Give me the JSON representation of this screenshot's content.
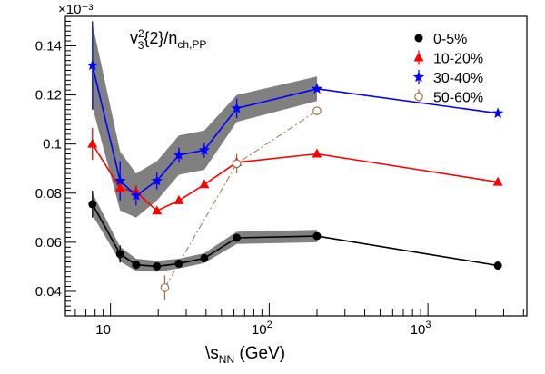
{
  "chart_data": {
    "type": "line",
    "title": "",
    "scale_label": "×10⁻³",
    "annotation": {
      "main": "v",
      "sup": "2",
      "sub": "3",
      "mid": "{2}/n",
      "sub2": "ch,PP"
    },
    "xlabel": {
      "prefix": "\\s",
      "sub": "NN",
      "suffix": " (GeV)"
    },
    "x_scale": "log",
    "xlim": [
      5.2,
      4200
    ],
    "ylim": [
      0.03,
      0.152
    ],
    "y_ticks": [
      "0.04",
      "0.06",
      "0.08",
      "0.1",
      "0.12",
      "0.14"
    ],
    "x_ticks": [
      {
        "base": "10",
        "exp": "",
        "value": 10
      },
      {
        "base": "10",
        "exp": "2",
        "value": 100
      },
      {
        "base": "10",
        "exp": "3",
        "value": 1000
      }
    ],
    "legend_position": "top-right",
    "series": [
      {
        "name": "0-5%",
        "color": "#000000",
        "marker": "circle",
        "line": "solid",
        "x": [
          7.7,
          11.5,
          14.5,
          19.6,
          27,
          39,
          62.4,
          200,
          2760
        ],
        "y": [
          0.0755,
          0.0552,
          0.0508,
          0.0502,
          0.0513,
          0.0535,
          0.0618,
          0.0625,
          0.0505
        ],
        "err": [
          0.0055,
          0.0035,
          0.0015,
          0.0012,
          0.001,
          0.001,
          0.0005,
          0.0005,
          0.0005
        ],
        "band": [
          0.0045,
          0.003,
          0.0025,
          0.0022,
          0.002,
          0.002,
          0.0025,
          0.0025,
          0
        ]
      },
      {
        "name": "10-20%",
        "color": "#ff0000",
        "marker": "triangle",
        "line": "solid",
        "x": [
          7.7,
          11.5,
          14.5,
          19.6,
          27,
          39,
          62.4,
          200,
          2760
        ],
        "y": [
          0.1,
          0.082,
          0.0805,
          0.0728,
          0.077,
          0.0835,
          0.0925,
          0.096,
          0.0845
        ],
        "err": [
          0.0065,
          0.0035,
          0.002,
          0.0015,
          0.0012,
          0.001,
          0.001,
          0.0008,
          0.0005
        ],
        "band": [
          0,
          0,
          0,
          0,
          0,
          0,
          0,
          0,
          0
        ]
      },
      {
        "name": "30-40%",
        "color": "#0000ff",
        "marker": "star",
        "line": "solid",
        "x": [
          7.7,
          11.5,
          14.5,
          19.6,
          27,
          39,
          62.4,
          200,
          2760
        ],
        "y": [
          0.132,
          0.085,
          0.079,
          0.085,
          0.0955,
          0.0975,
          0.1145,
          0.1225,
          0.1125
        ],
        "err": [
          0.018,
          0.008,
          0.004,
          0.0035,
          0.003,
          0.003,
          0.004,
          0.001,
          0.0005
        ],
        "band": [
          0.017,
          0.012,
          0.009,
          0.008,
          0.008,
          0.008,
          0.0055,
          0.005,
          0
        ]
      },
      {
        "name": "50-60%",
        "color": "#a0704a",
        "marker": "open-circle",
        "line": "dashdot",
        "x": [
          22,
          62.4,
          200
        ],
        "y": [
          0.0415,
          0.092,
          0.1135
        ],
        "err": [
          0.005,
          0.004,
          0.001
        ],
        "band": [
          0,
          0,
          0
        ]
      }
    ]
  }
}
